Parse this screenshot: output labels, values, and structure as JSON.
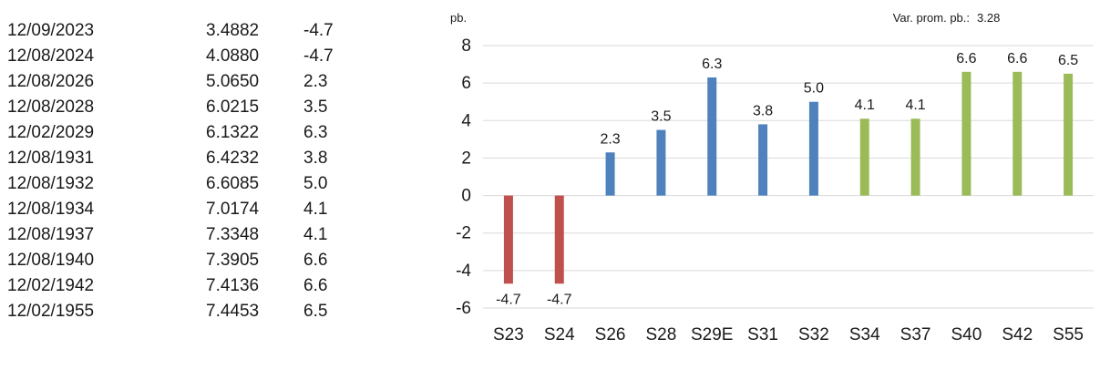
{
  "table": {
    "rows": [
      {
        "date": "12/09/2023",
        "yield": "3.4882",
        "change": "-4.7"
      },
      {
        "date": "12/08/2024",
        "yield": "4.0880",
        "change": "-4.7"
      },
      {
        "date": "12/08/2026",
        "yield": "5.0650",
        "change": "2.3"
      },
      {
        "date": "12/08/2028",
        "yield": "6.0215",
        "change": "3.5"
      },
      {
        "date": "12/02/2029",
        "yield": "6.1322",
        "change": "6.3"
      },
      {
        "date": "12/08/1931",
        "yield": "6.4232",
        "change": "3.8"
      },
      {
        "date": "12/08/1932",
        "yield": "6.6085",
        "change": "5.0"
      },
      {
        "date": "12/08/1934",
        "yield": "7.0174",
        "change": "4.1"
      },
      {
        "date": "12/08/1937",
        "yield": "7.3348",
        "change": "4.1"
      },
      {
        "date": "12/08/1940",
        "yield": "7.3905",
        "change": "6.6"
      },
      {
        "date": "12/02/1942",
        "yield": "7.4136",
        "change": "6.6"
      },
      {
        "date": "12/02/1955",
        "yield": "7.4453",
        "change": "6.5"
      }
    ]
  },
  "chart_data": {
    "type": "bar",
    "ylabel": "pb.",
    "annotation_label": "Var. prom. pb.:",
    "annotation_value": "3.28",
    "ylim": [
      -6,
      8
    ],
    "yticks": [
      8,
      6,
      4,
      2,
      0,
      -2,
      -4,
      -6
    ],
    "categories": [
      "S23",
      "S24",
      "S26",
      "S28",
      "S29E",
      "S31",
      "S32",
      "S34",
      "S37",
      "S40",
      "S42",
      "S55"
    ],
    "values": [
      -4.7,
      -4.7,
      2.3,
      3.5,
      6.3,
      3.8,
      5.0,
      4.1,
      4.1,
      6.6,
      6.6,
      6.5
    ],
    "value_labels": [
      "-4.7",
      "-4.7",
      "2.3",
      "3.5",
      "6.3",
      "3.8",
      "5.0",
      "4.1",
      "4.1",
      "6.6",
      "6.6",
      "6.5"
    ],
    "bar_groups": [
      "red",
      "red",
      "blue",
      "blue",
      "blue",
      "blue",
      "blue",
      "green",
      "green",
      "green",
      "green",
      "green"
    ],
    "colors": {
      "red": "#c0504d",
      "blue": "#4f81bd",
      "green": "#9bbb59",
      "grid": "#d9d9d9"
    },
    "grid": true
  }
}
